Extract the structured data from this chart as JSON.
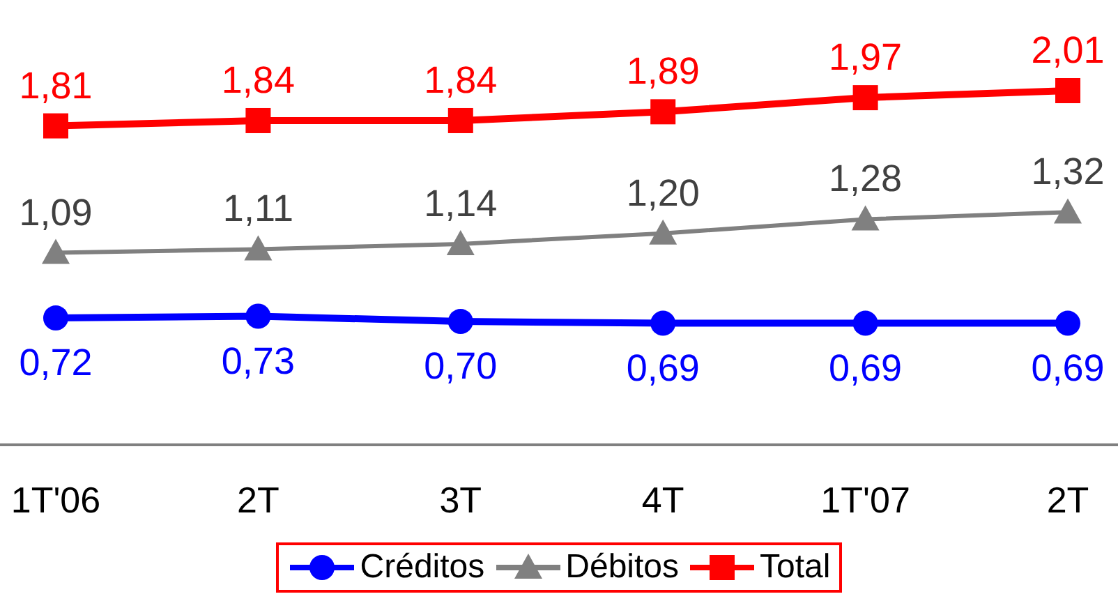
{
  "chart_data": {
    "type": "line",
    "categories": [
      "1T'06",
      "2T",
      "3T",
      "4T",
      "1T'07",
      "2T"
    ],
    "series": [
      {
        "name": "Créditos",
        "color": "#0000ff",
        "marker": "circle",
        "values": [
          0.72,
          0.73,
          0.7,
          0.69,
          0.69,
          0.69
        ],
        "value_labels": [
          "0,72",
          "0,73",
          "0,70",
          "0,69",
          "0,69",
          "0,69"
        ]
      },
      {
        "name": "Débitos",
        "color": "#808080",
        "marker": "triangle",
        "values": [
          1.09,
          1.11,
          1.14,
          1.2,
          1.28,
          1.32
        ],
        "value_labels": [
          "1,09",
          "1,11",
          "1,14",
          "1,20",
          "1,28",
          "1,32"
        ]
      },
      {
        "name": "Total",
        "color": "#ff0000",
        "marker": "square",
        "values": [
          1.81,
          1.84,
          1.84,
          1.89,
          1.97,
          2.01
        ],
        "value_labels": [
          "1,81",
          "1,84",
          "1,84",
          "1,89",
          "1,97",
          "2,01"
        ]
      }
    ],
    "legend": "bottom",
    "grid": false
  }
}
